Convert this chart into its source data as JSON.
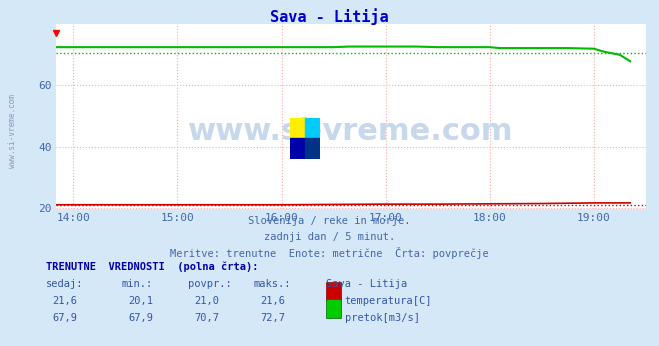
{
  "title": "Sava - Litija",
  "title_color": "#0000cc",
  "bg_color": "#d4e8f8",
  "plot_bg_color": "#ffffff",
  "xlim_hours": [
    13.833,
    19.5
  ],
  "ylim": [
    19.5,
    80
  ],
  "yticks": [
    20,
    40,
    60
  ],
  "xtick_labels": [
    "14:00",
    "15:00",
    "16:00",
    "17:00",
    "18:00",
    "19:00"
  ],
  "xtick_positions": [
    14.0,
    15.0,
    16.0,
    17.0,
    18.0,
    19.0
  ],
  "grid_color": "#ffaaaa",
  "subtitle_lines": [
    "Slovenija / reke in morje.",
    "zadnji dan / 5 minut.",
    "Meritve: trenutne  Enote: metrične  Črta: povprečje"
  ],
  "subtitle_color": "#4466aa",
  "sidebar_text": "www.si-vreme.com",
  "sidebar_color": "#8899bb",
  "temp_color": "#cc0000",
  "flow_color": "#00bb00",
  "temp_avg": 21.0,
  "flow_avg": 70.7,
  "temp_data_x": [
    13.833,
    14.0,
    14.5,
    15.0,
    15.5,
    16.0,
    16.5,
    17.0,
    17.5,
    18.0,
    18.5,
    19.0,
    19.35
  ],
  "temp_data_y": [
    21.0,
    21.0,
    21.0,
    21.0,
    21.0,
    21.0,
    21.1,
    21.2,
    21.2,
    21.3,
    21.4,
    21.6,
    21.6
  ],
  "flow_data_x": [
    13.833,
    14.0,
    14.5,
    15.0,
    15.5,
    16.0,
    16.5,
    16.65,
    17.0,
    17.3,
    17.5,
    18.0,
    18.1,
    18.5,
    18.75,
    19.0,
    19.1,
    19.25,
    19.35
  ],
  "flow_data_y": [
    72.5,
    72.5,
    72.5,
    72.5,
    72.5,
    72.5,
    72.5,
    72.7,
    72.7,
    72.7,
    72.5,
    72.5,
    72.2,
    72.2,
    72.2,
    72.0,
    71.0,
    70.0,
    67.9
  ],
  "table_header": "TRENUTNE  VREDNOSTI  (polna črta):",
  "table_col_headers": [
    "sedaj:",
    "min.:",
    "povpr.:",
    "maks.:",
    "Sava - Litija"
  ],
  "table_row1_vals": [
    "21,6",
    "20,1",
    "21,0",
    "21,6"
  ],
  "table_row1_label": "temperatura[C]",
  "table_row2_vals": [
    "67,9",
    "67,9",
    "70,7",
    "72,7"
  ],
  "table_row2_label": "pretok[m3/s]",
  "table_color": "#3355aa",
  "table_header_color": "#0000aa",
  "legend_temp_color": "#cc0000",
  "legend_flow_color": "#00cc00",
  "watermark_text": "www.si-vreme.com",
  "watermark_color": "#c8d8ec"
}
